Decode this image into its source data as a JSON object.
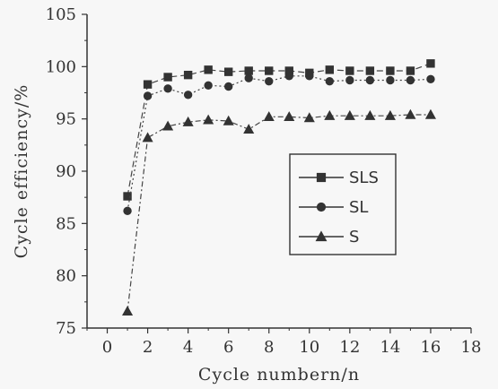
{
  "chart_data": {
    "type": "line",
    "xlabel": "Cycle numbern/n",
    "ylabel": "Cycle efficiency/%",
    "xlim": [
      -1,
      18
    ],
    "ylim": [
      75,
      105
    ],
    "xticks": [
      "0",
      "2",
      "4",
      "6",
      "8",
      "10",
      "12",
      "14",
      "16",
      "18"
    ],
    "yticks": [
      "75",
      "80",
      "85",
      "90",
      "95",
      "100",
      "105"
    ],
    "x": [
      1,
      2,
      3,
      4,
      5,
      6,
      7,
      8,
      9,
      10,
      11,
      12,
      13,
      14,
      15,
      16
    ],
    "series": [
      {
        "name": "SLS",
        "marker": "square",
        "line": "dashed",
        "values": [
          87.6,
          98.3,
          99.0,
          99.2,
          99.7,
          99.5,
          99.6,
          99.6,
          99.6,
          99.4,
          99.7,
          99.6,
          99.6,
          99.6,
          99.6,
          100.3
        ]
      },
      {
        "name": "SL",
        "marker": "circle",
        "line": "dotted",
        "values": [
          86.2,
          97.2,
          97.9,
          97.3,
          98.2,
          98.1,
          98.9,
          98.6,
          99.1,
          99.1,
          98.6,
          98.7,
          98.7,
          98.7,
          98.7,
          98.8
        ]
      },
      {
        "name": "S",
        "marker": "triangle",
        "line": "dashdot",
        "values": [
          76.6,
          93.2,
          94.3,
          94.7,
          94.9,
          94.8,
          94.0,
          95.2,
          95.2,
          95.1,
          95.3,
          95.3,
          95.3,
          95.3,
          95.4,
          95.4
        ]
      }
    ],
    "legend_position": "right-middle",
    "grid": false
  }
}
